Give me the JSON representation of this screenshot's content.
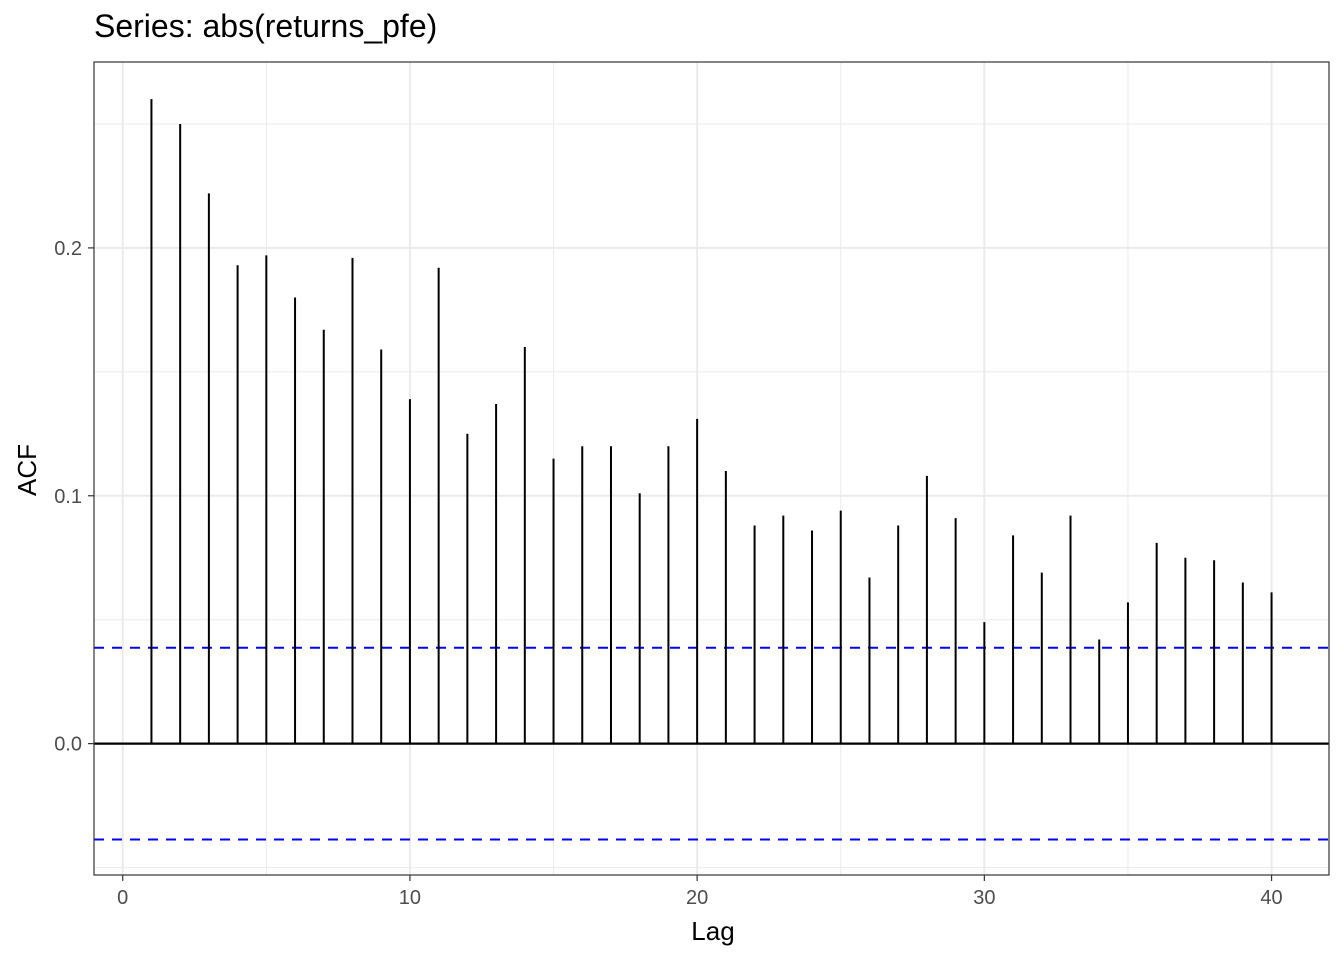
{
  "chart_data": {
    "type": "bar",
    "title": "Series: abs(returns_pfe)",
    "xlabel": "Lag",
    "ylabel": "ACF",
    "xlim": [
      -1,
      42
    ],
    "ylim": [
      -0.053,
      0.275
    ],
    "x_ticks": [
      0,
      10,
      20,
      30,
      40
    ],
    "x_tick_labels": [
      "0",
      "10",
      "20",
      "30",
      "40"
    ],
    "y_ticks": [
      0.0,
      0.1,
      0.2
    ],
    "y_tick_labels": [
      "0.0",
      "0.1",
      "0.2"
    ],
    "x_minor_ticks": [
      5,
      15,
      25,
      35
    ],
    "y_minor_ticks": [
      -0.05,
      0.05,
      0.15,
      0.25
    ],
    "grid": true,
    "confidence_bound": 0.0387,
    "colors": {
      "bars": "#000000",
      "bounds": "#0000ff",
      "grid": "#ebebeb",
      "panel_border": "#333333"
    },
    "lags": [
      1,
      2,
      3,
      4,
      5,
      6,
      7,
      8,
      9,
      10,
      11,
      12,
      13,
      14,
      15,
      16,
      17,
      18,
      19,
      20,
      21,
      22,
      23,
      24,
      25,
      26,
      27,
      28,
      29,
      30,
      31,
      32,
      33,
      34,
      35,
      36,
      37,
      38,
      39,
      40
    ],
    "values": [
      0.26,
      0.25,
      0.222,
      0.193,
      0.197,
      0.18,
      0.167,
      0.196,
      0.159,
      0.139,
      0.192,
      0.125,
      0.137,
      0.16,
      0.115,
      0.12,
      0.12,
      0.101,
      0.12,
      0.131,
      0.11,
      0.088,
      0.092,
      0.086,
      0.094,
      0.067,
      0.088,
      0.108,
      0.091,
      0.049,
      0.084,
      0.069,
      0.092,
      0.042,
      0.057,
      0.081,
      0.075,
      0.074,
      0.065,
      0.061
    ]
  }
}
